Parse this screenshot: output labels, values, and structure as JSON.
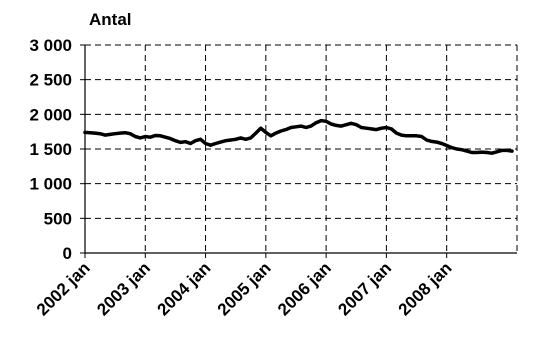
{
  "chart_data": {
    "type": "line",
    "title": "",
    "ylabel": "Antal",
    "xlabel": "",
    "ylim": [
      0,
      3000
    ],
    "y_ticks": [
      {
        "value": 0,
        "label": "0"
      },
      {
        "value": 500,
        "label": "500"
      },
      {
        "value": 1000,
        "label": "1 000"
      },
      {
        "value": 1500,
        "label": "1 500"
      },
      {
        "value": 2000,
        "label": "2 000"
      },
      {
        "value": 2500,
        "label": "2 500"
      },
      {
        "value": 3000,
        "label": "3 000"
      }
    ],
    "x_ticks": [
      "2002 jan",
      "2003 jan",
      "2004 jan",
      "2005 jan",
      "2006 jan",
      "2007 jan",
      "2008 jan"
    ],
    "grid": true,
    "legend": "none",
    "line_color": "#000000",
    "series": [
      {
        "x_start": "2002 jan",
        "frequency": "monthly",
        "values": [
          1740,
          1735,
          1730,
          1720,
          1700,
          1710,
          1720,
          1730,
          1735,
          1720,
          1680,
          1660,
          1680,
          1670,
          1695,
          1690,
          1670,
          1650,
          1620,
          1595,
          1605,
          1580,
          1620,
          1640,
          1580,
          1555,
          1580,
          1600,
          1620,
          1630,
          1640,
          1660,
          1640,
          1660,
          1730,
          1800,
          1740,
          1690,
          1730,
          1760,
          1780,
          1810,
          1820,
          1830,
          1810,
          1830,
          1880,
          1910,
          1900,
          1860,
          1840,
          1830,
          1850,
          1870,
          1850,
          1810,
          1800,
          1790,
          1780,
          1800,
          1810,
          1790,
          1730,
          1700,
          1690,
          1690,
          1690,
          1680,
          1630,
          1610,
          1600,
          1580,
          1550,
          1520,
          1500,
          1490,
          1470,
          1450,
          1450,
          1455,
          1450,
          1440,
          1460,
          1480,
          1480,
          1470
        ]
      }
    ]
  }
}
